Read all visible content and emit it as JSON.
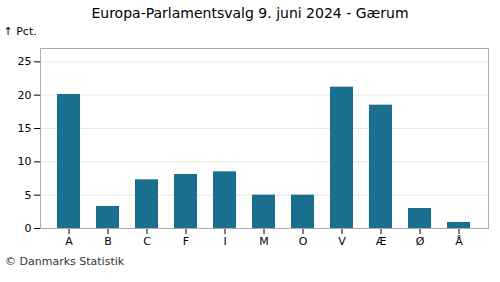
{
  "chart_data": {
    "type": "bar",
    "title": "Europa-Parlamentsvalg 9. juni 2024 - Gærum",
    "categories": [
      "A",
      "B",
      "C",
      "F",
      "I",
      "M",
      "O",
      "V",
      "Æ",
      "Ø",
      "Å"
    ],
    "values": [
      20.1,
      3.3,
      7.3,
      8.1,
      8.5,
      5.0,
      5.0,
      21.2,
      18.5,
      3.0,
      0.9
    ],
    "color": "#1a6e8e",
    "ylabel": "Pct.",
    "ylim": [
      0,
      27
    ],
    "yticks": [
      0,
      5,
      10,
      15,
      20,
      25
    ],
    "grid": true,
    "caption": "© Danmarks Statistik"
  }
}
